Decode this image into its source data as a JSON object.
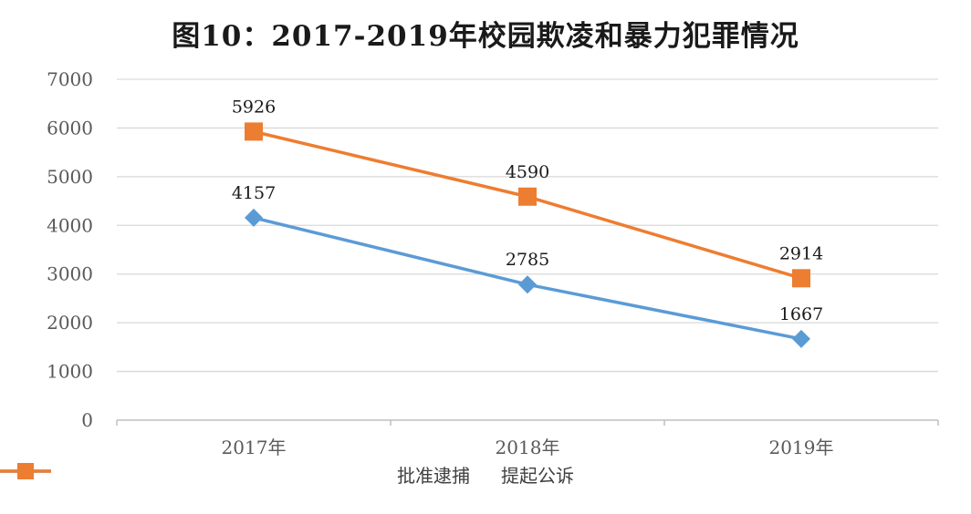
{
  "chart_data": {
    "type": "line",
    "title": "图10：2017-2019年校园欺凌和暴力犯罪情况",
    "categories": [
      "2017年",
      "2018年",
      "2019年"
    ],
    "series": [
      {
        "name": "批准逮捕",
        "values": [
          4157,
          2785,
          1667
        ],
        "color": "#5b9bd5",
        "marker": "diamond"
      },
      {
        "name": "提起公诉",
        "values": [
          5926,
          4590,
          2914
        ],
        "color": "#ed7d31",
        "marker": "square"
      }
    ],
    "ylim": [
      0,
      7000
    ],
    "yticks": [
      0,
      1000,
      2000,
      3000,
      4000,
      5000,
      6000,
      7000
    ],
    "grid": true,
    "legend_position": "bottom",
    "data_labels": true
  }
}
